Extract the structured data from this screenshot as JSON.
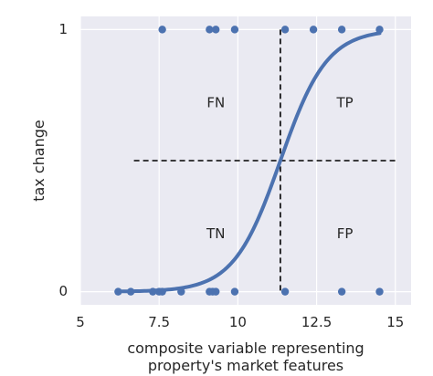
{
  "chart_data": {
    "type": "scatter",
    "xlabel": "composite variable representing property's market features",
    "xlabel_lines": [
      "composite variable representing",
      "property's market features"
    ],
    "ylabel": "tax change",
    "xlim": [
      5,
      15.5
    ],
    "ylim": [
      -0.05,
      1.05
    ],
    "xticks": [
      5,
      7.5,
      10,
      12.5,
      15
    ],
    "xtick_labels": [
      "5",
      "7.5",
      "10",
      "12.5",
      "15"
    ],
    "yticks": [
      0,
      1
    ],
    "ytick_labels": [
      "0",
      "1"
    ],
    "grid": true,
    "colors": {
      "background": "#eaeaf2",
      "grid": "#ffffff",
      "series": "#4c72b0",
      "dashed": "#000000"
    },
    "series": [
      {
        "kind": "points",
        "x": [
          6.2,
          6.6,
          7.3,
          7.5,
          7.6,
          8.2,
          9.1,
          9.2,
          9.3,
          9.9,
          11.5,
          13.3,
          14.5
        ],
        "y": [
          0,
          0,
          0,
          0,
          0,
          0,
          0,
          0,
          0,
          0,
          0,
          0,
          0
        ]
      },
      {
        "kind": "points",
        "x": [
          7.6,
          9.1,
          9.3,
          9.9,
          11.5,
          12.4,
          13.3,
          14.5
        ],
        "y": [
          1,
          1,
          1,
          1,
          1,
          1,
          1,
          1
        ]
      },
      {
        "kind": "logistic-curve",
        "x_range": [
          6.2,
          14.5
        ],
        "midpoint": 11.35,
        "slope": 1.35
      }
    ],
    "threshold_lines": {
      "vertical_x": 11.35,
      "horizontal_y": 0.5
    },
    "annotations": [
      {
        "text": "FN",
        "x": 9.3,
        "y": 0.72
      },
      {
        "text": "TP",
        "x": 13.4,
        "y": 0.72
      },
      {
        "text": "TN",
        "x": 9.3,
        "y": 0.22
      },
      {
        "text": "FP",
        "x": 13.4,
        "y": 0.22
      }
    ]
  }
}
